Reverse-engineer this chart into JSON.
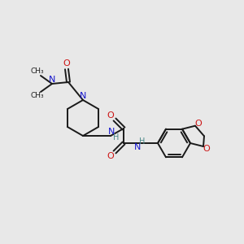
{
  "bg_color": "#e8e8e8",
  "bond_color": "#1a1a1a",
  "N_color": "#1414cc",
  "O_color": "#cc1414",
  "H_color": "#4a8888",
  "lw": 1.4,
  "figsize": [
    3.0,
    3.0
  ],
  "dpi": 100,
  "xlim": [
    0,
    300
  ],
  "ylim": [
    0,
    300
  ]
}
